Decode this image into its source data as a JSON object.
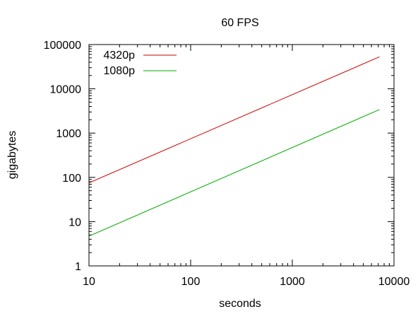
{
  "chart_data": {
    "type": "line",
    "title": "60 FPS",
    "xlabel": "seconds",
    "ylabel": "gigabytes",
    "xscale": "log",
    "yscale": "log",
    "xlim": [
      10,
      10000
    ],
    "ylim": [
      1,
      100000
    ],
    "x_ticks": [
      10,
      100,
      1000,
      10000
    ],
    "x_tick_labels": [
      "10",
      "100",
      "1000",
      "10000"
    ],
    "y_ticks": [
      1,
      10,
      100,
      1000,
      10000,
      100000
    ],
    "y_tick_labels": [
      "1",
      "10",
      "100",
      "1000",
      "10000",
      "100000"
    ],
    "grid": false,
    "legend": "top-left",
    "series": [
      {
        "name": "4320p",
        "color": "#cc0000",
        "x": [
          10,
          7200
        ],
        "y": [
          75,
          53000
        ]
      },
      {
        "name": "1080p",
        "color": "#00aa00",
        "x": [
          10,
          7200
        ],
        "y": [
          4.7,
          3400
        ]
      }
    ]
  }
}
